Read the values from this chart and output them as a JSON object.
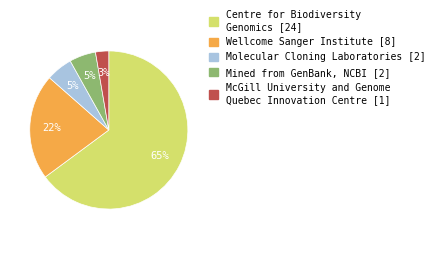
{
  "labels": [
    "Centre for Biodiversity\nGenomics [24]",
    "Wellcome Sanger Institute [8]",
    "Molecular Cloning Laboratories [2]",
    "Mined from GenBank, NCBI [2]",
    "McGill University and Genome\nQuebec Innovation Centre [1]"
  ],
  "values": [
    24,
    8,
    2,
    2,
    1
  ],
  "colors": [
    "#d4e06b",
    "#f5a947",
    "#a8c4e0",
    "#8db870",
    "#c0504d"
  ],
  "background_color": "#ffffff",
  "startangle": 90,
  "pctdistance": 0.72,
  "legend_fontsize": 7.0,
  "autopct_fontsize": 7.5
}
